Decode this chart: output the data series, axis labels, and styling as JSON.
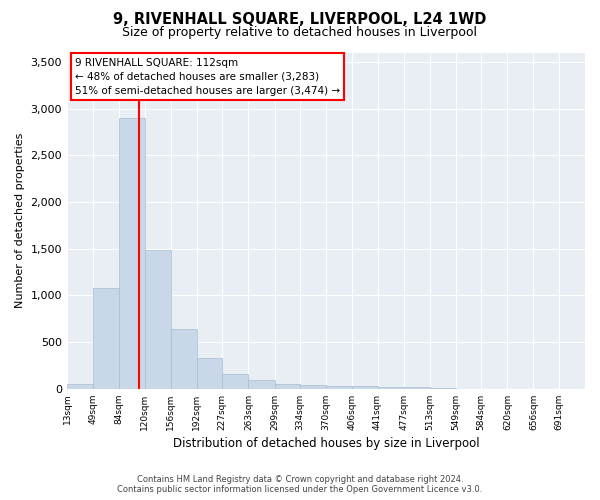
{
  "title": "9, RIVENHALL SQUARE, LIVERPOOL, L24 1WD",
  "subtitle": "Size of property relative to detached houses in Liverpool",
  "xlabel": "Distribution of detached houses by size in Liverpool",
  "ylabel": "Number of detached properties",
  "bar_color": "#c8d8e8",
  "bar_edgecolor": "#a8bece",
  "property_line_x": 112,
  "property_line_color": "red",
  "annotation_text": "9 RIVENHALL SQUARE: 112sqm\n← 48% of detached houses are smaller (3,283)\n51% of semi-detached houses are larger (3,474) →",
  "annotation_box_color": "white",
  "annotation_box_edgecolor": "red",
  "bin_edges": [
    13,
    49,
    84,
    120,
    156,
    192,
    227,
    263,
    299,
    334,
    370,
    406,
    441,
    477,
    513,
    549,
    584,
    620,
    656,
    691,
    727
  ],
  "bar_heights": [
    50,
    1080,
    2900,
    1490,
    635,
    335,
    160,
    90,
    55,
    40,
    35,
    30,
    20,
    15,
    5,
    3,
    2,
    1,
    1,
    0
  ],
  "ylim": [
    0,
    3600
  ],
  "yticks": [
    0,
    500,
    1000,
    1500,
    2000,
    2500,
    3000,
    3500
  ],
  "footer_line1": "Contains HM Land Registry data © Crown copyright and database right 2024.",
  "footer_line2": "Contains public sector information licensed under the Open Government Licence v3.0.",
  "fig_facecolor": "#ffffff",
  "plot_bg_color": "#e8eef4",
  "grid_color": "#ffffff"
}
